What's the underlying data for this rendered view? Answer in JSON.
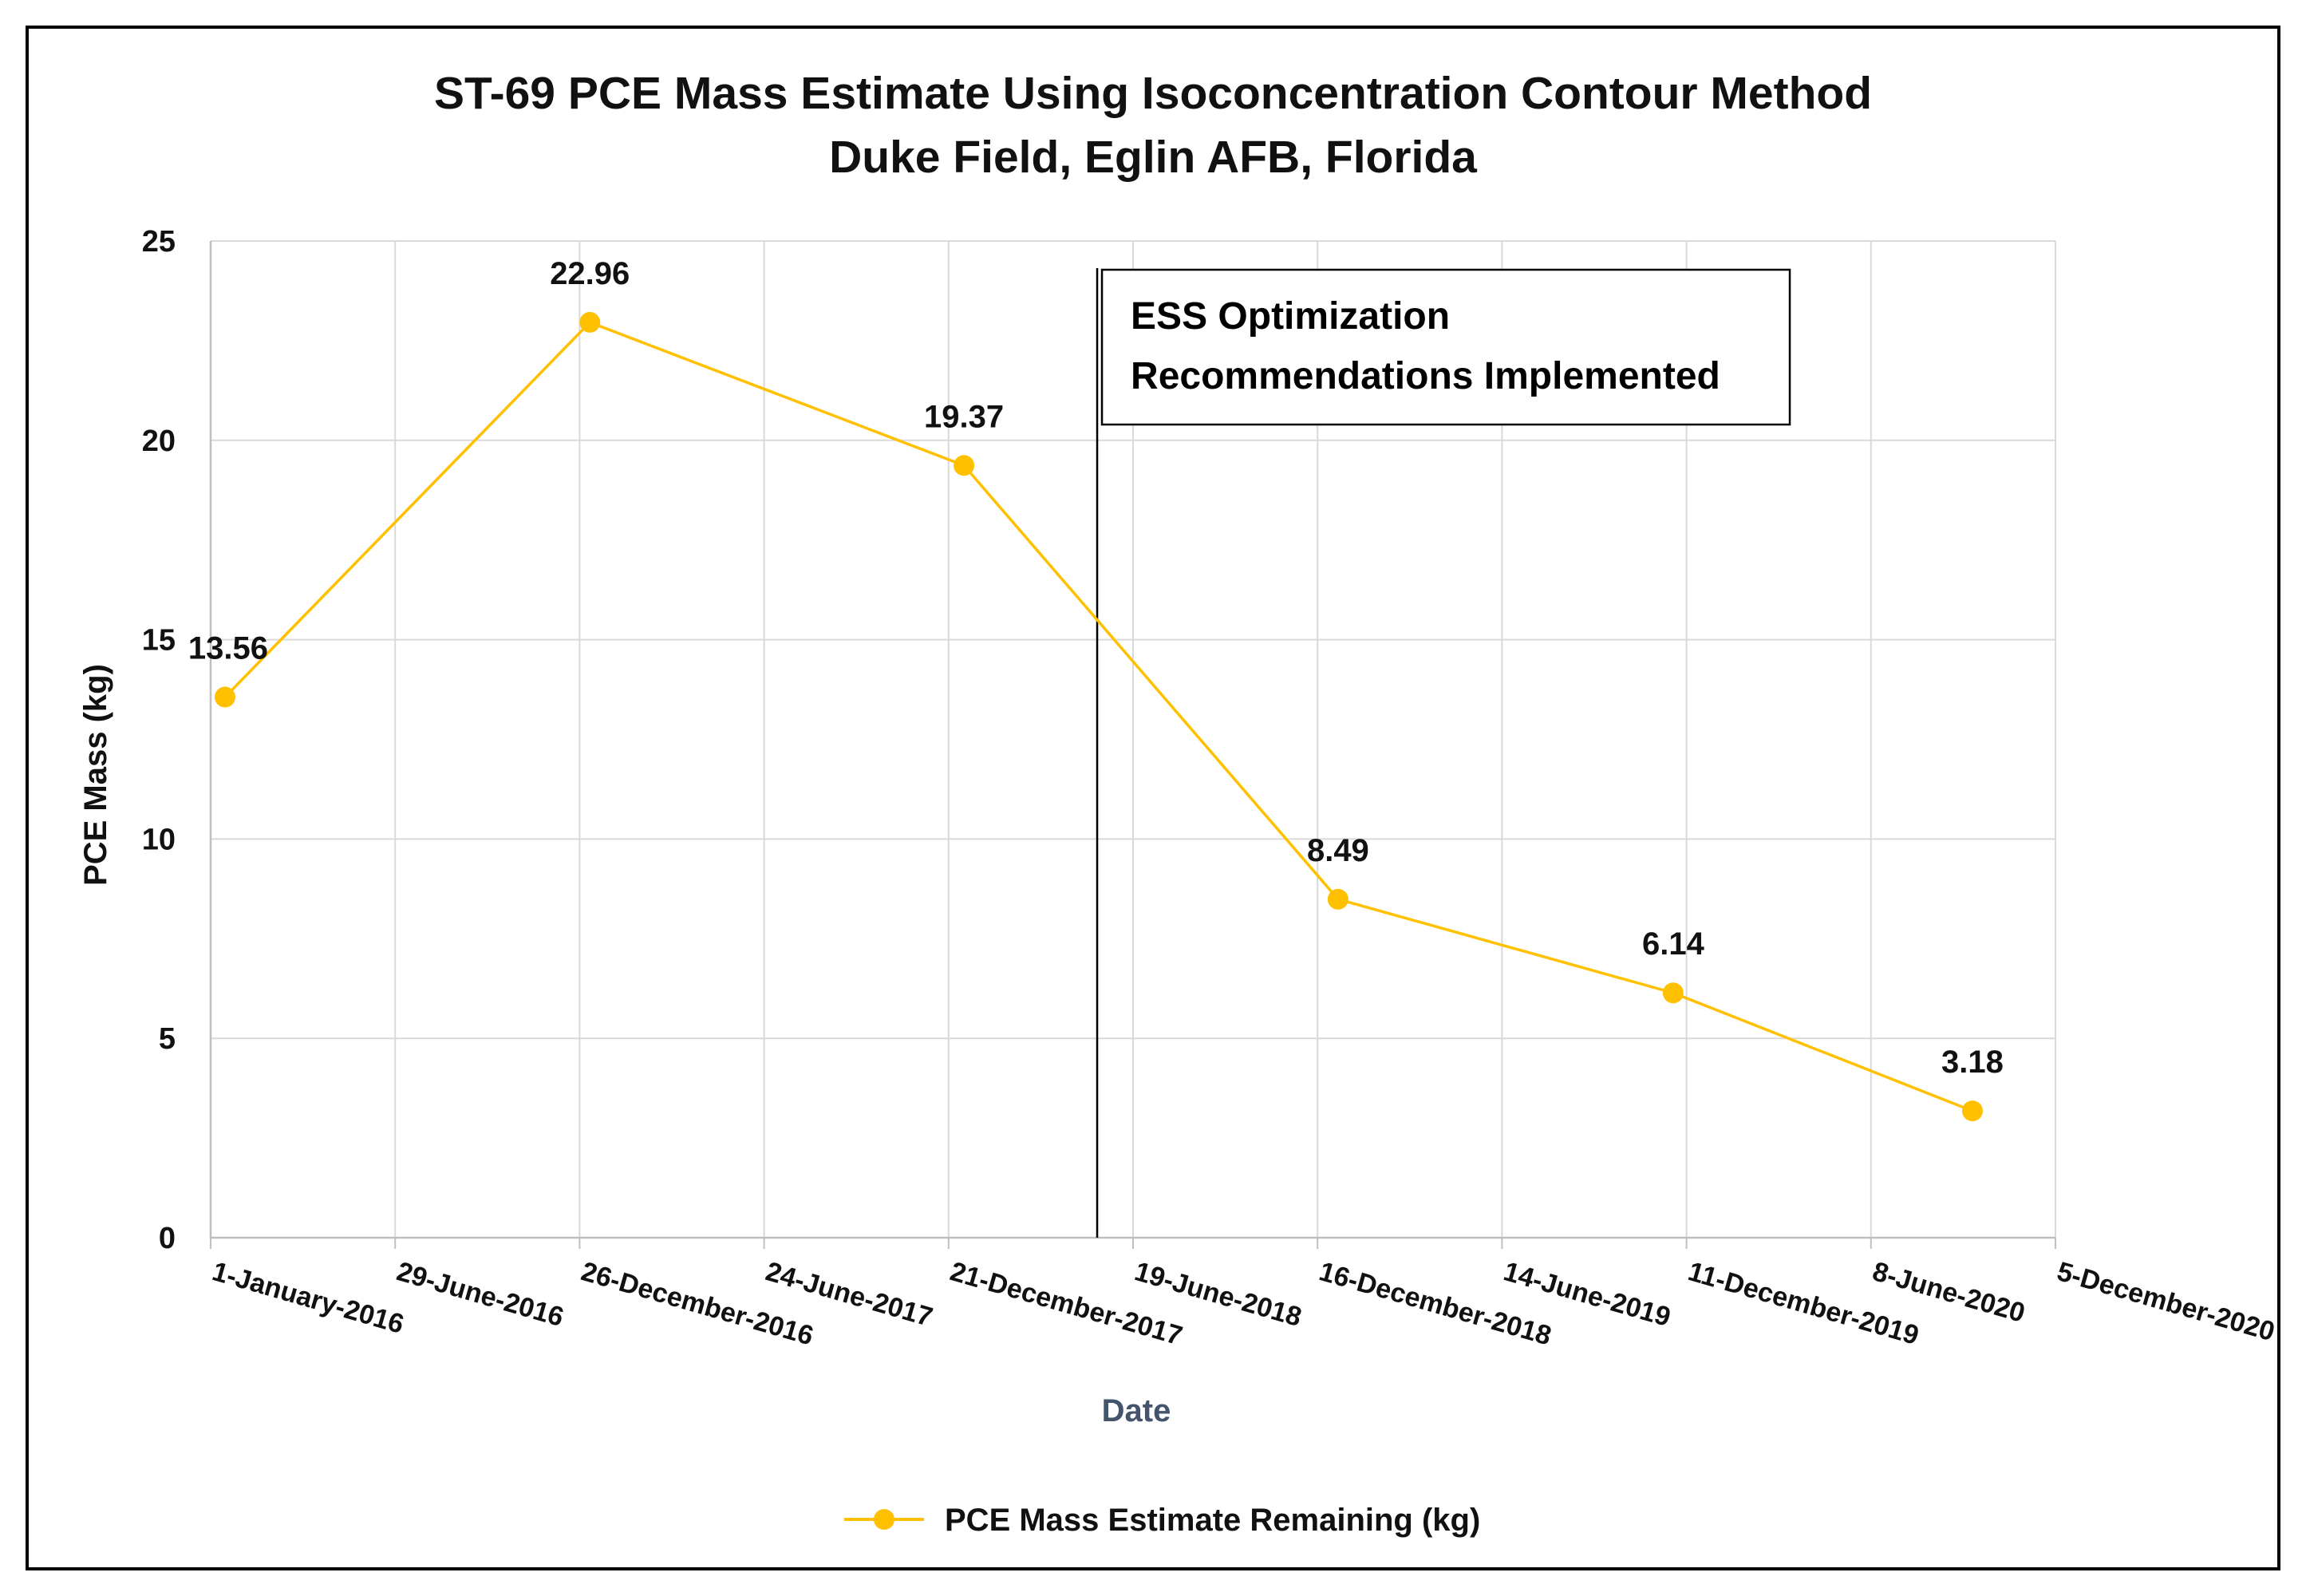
{
  "colors": {
    "series": "#FFC000",
    "grid": "#D9D9D9",
    "axis": "#BFBFBF",
    "frame": "#000000",
    "xlabel": "#44546A"
  },
  "chart_data": {
    "type": "line",
    "title_lines": [
      "ST-69 PCE Mass Estimate Using Isoconcentration Contour Method",
      "Duke Field, Eglin AFB, Florida"
    ],
    "xlabel": "Date",
    "ylabel": "PCE Mass (kg)",
    "ylim": [
      0,
      25
    ],
    "yticks": [
      0,
      5,
      10,
      15,
      20,
      25
    ],
    "xlim": [
      "2016-01-01",
      "2020-12-05"
    ],
    "xticks": [
      {
        "date": "2016-01-01",
        "label": "1-January-2016"
      },
      {
        "date": "2016-06-29",
        "label": "29-June-2016"
      },
      {
        "date": "2016-12-26",
        "label": "26-December-2016"
      },
      {
        "date": "2017-06-24",
        "label": "24-June-2017"
      },
      {
        "date": "2017-12-21",
        "label": "21-December-2017"
      },
      {
        "date": "2018-06-19",
        "label": "19-June-2018"
      },
      {
        "date": "2018-12-16",
        "label": "16-December-2018"
      },
      {
        "date": "2019-06-14",
        "label": "14-June-2019"
      },
      {
        "date": "2019-12-11",
        "label": "11-December-2019"
      },
      {
        "date": "2020-06-08",
        "label": "8-June-2020"
      },
      {
        "date": "2020-12-05",
        "label": "5-December-2020"
      }
    ],
    "grid": true,
    "series": [
      {
        "name": "PCE Mass Estimate Remaining (kg)",
        "points": [
          {
            "x": "2016-01-15",
            "y": 13.56,
            "label": "13.56"
          },
          {
            "x": "2017-01-05",
            "y": 22.96,
            "label": "22.96"
          },
          {
            "x": "2018-01-05",
            "y": 19.37,
            "label": "19.37"
          },
          {
            "x": "2019-01-05",
            "y": 8.49,
            "label": "8.49"
          },
          {
            "x": "2019-11-28",
            "y": 6.14,
            "label": "6.14"
          },
          {
            "x": "2020-09-15",
            "y": 3.18,
            "label": "3.18"
          }
        ]
      }
    ],
    "annotation": {
      "lines": [
        "ESS Optimization",
        "Recommendations Implemented"
      ],
      "x": "2018-05-15"
    },
    "legend_position": "bottom"
  }
}
